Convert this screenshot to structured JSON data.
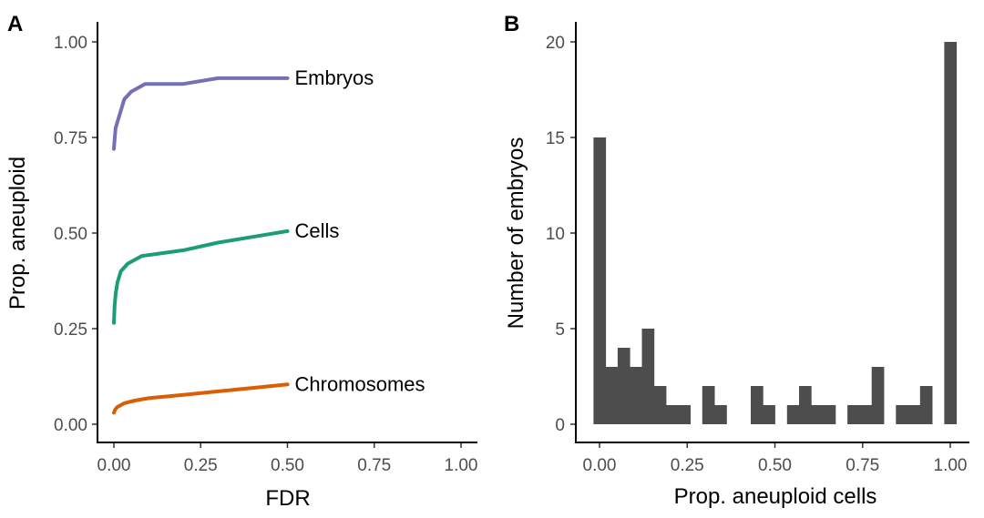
{
  "chart_data": [
    {
      "panel": "A",
      "type": "line",
      "xlabel": "FDR",
      "ylabel": "Prop. aneuploid",
      "xlim": [
        0,
        1
      ],
      "ylim": [
        0,
        1
      ],
      "xticks": [
        "0.00",
        "0.25",
        "0.50",
        "0.75",
        "1.00"
      ],
      "yticks": [
        "0.00",
        "0.25",
        "0.50",
        "0.75",
        "1.00"
      ],
      "grid": false,
      "legend": "direct labels at line ends",
      "series": [
        {
          "name": "Embryos",
          "color": "#7570b3",
          "x": [
            0,
            0.002,
            0.005,
            0.01,
            0.03,
            0.05,
            0.09,
            0.15,
            0.2,
            0.3,
            0.4,
            0.5
          ],
          "y": [
            0.72,
            0.745,
            0.775,
            0.79,
            0.85,
            0.87,
            0.89,
            0.89,
            0.89,
            0.905,
            0.905,
            0.905
          ]
        },
        {
          "name": "Cells",
          "color": "#1b9e77",
          "x": [
            0,
            0.002,
            0.005,
            0.01,
            0.02,
            0.04,
            0.08,
            0.12,
            0.2,
            0.3,
            0.4,
            0.5
          ],
          "y": [
            0.265,
            0.31,
            0.34,
            0.37,
            0.4,
            0.42,
            0.44,
            0.445,
            0.455,
            0.475,
            0.49,
            0.505
          ]
        },
        {
          "name": "Chromosomes",
          "color": "#d95f02",
          "x": [
            0,
            0.002,
            0.005,
            0.01,
            0.03,
            0.06,
            0.1,
            0.2,
            0.3,
            0.4,
            0.5
          ],
          "y": [
            0.03,
            0.035,
            0.04,
            0.045,
            0.055,
            0.062,
            0.068,
            0.077,
            0.086,
            0.095,
            0.104
          ]
        }
      ]
    },
    {
      "panel": "B",
      "type": "bar",
      "subtype": "histogram",
      "xlabel": "Prop. aneuploid cells",
      "ylabel": "Number of embryos",
      "xlim": [
        -0.035,
        1.035
      ],
      "ylim": [
        0,
        21
      ],
      "xticks": [
        "0.00",
        "0.25",
        "0.50",
        "0.75",
        "1.00"
      ],
      "yticks": [
        "0",
        "5",
        "10",
        "15",
        "20"
      ],
      "grid": false,
      "bar_color": "#4d4d4d",
      "bin_width": 0.0345,
      "bin_centers": [
        0,
        0.0345,
        0.069,
        0.1034,
        0.1379,
        0.1724,
        0.2069,
        0.2414,
        0.2759,
        0.3103,
        0.3448,
        0.3793,
        0.4138,
        0.4483,
        0.4828,
        0.5172,
        0.5517,
        0.5862,
        0.6207,
        0.6552,
        0.6897,
        0.7241,
        0.7586,
        0.7931,
        0.8276,
        0.8621,
        0.8966,
        0.931,
        0.9655,
        1.0
      ],
      "values": [
        15,
        3,
        4,
        3,
        5,
        2,
        1,
        1,
        0,
        2,
        1,
        0,
        0,
        2,
        1,
        0,
        1,
        2,
        1,
        1,
        0,
        1,
        1,
        3,
        0,
        1,
        1,
        2,
        0,
        20
      ]
    }
  ],
  "panels": {
    "a": {
      "label": "A",
      "xlabel": "FDR",
      "ylabel": "Prop. aneuploid",
      "xticks": [
        "0.00",
        "0.25",
        "0.50",
        "0.75",
        "1.00"
      ],
      "yticks": [
        "0.00",
        "0.25",
        "0.50",
        "0.75",
        "1.00"
      ],
      "series_labels": [
        "Embryos",
        "Cells",
        "Chromosomes"
      ]
    },
    "b": {
      "label": "B",
      "xlabel": "Prop. aneuploid cells",
      "ylabel": "Number of embryos",
      "xticks": [
        "0.00",
        "0.25",
        "0.50",
        "0.75",
        "1.00"
      ],
      "yticks": [
        "0",
        "5",
        "10",
        "15",
        "20"
      ]
    }
  }
}
